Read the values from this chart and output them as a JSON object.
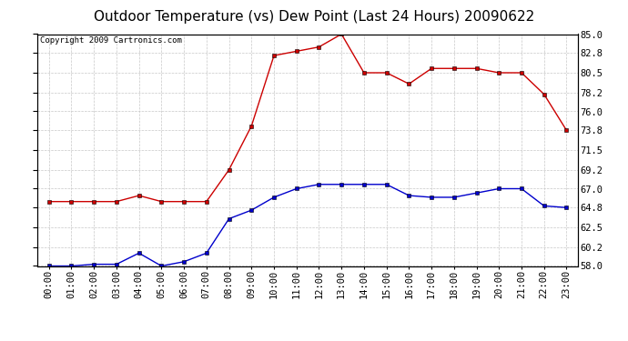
{
  "title": "Outdoor Temperature (vs) Dew Point (Last 24 Hours) 20090622",
  "copyright": "Copyright 2009 Cartronics.com",
  "x_labels": [
    "00:00",
    "01:00",
    "02:00",
    "03:00",
    "04:00",
    "05:00",
    "06:00",
    "07:00",
    "08:00",
    "09:00",
    "10:00",
    "11:00",
    "12:00",
    "13:00",
    "14:00",
    "15:00",
    "16:00",
    "17:00",
    "18:00",
    "19:00",
    "20:00",
    "21:00",
    "22:00",
    "23:00"
  ],
  "temp_red": [
    65.5,
    65.5,
    65.5,
    65.5,
    66.2,
    65.5,
    65.5,
    65.5,
    69.2,
    74.3,
    82.5,
    83.0,
    83.5,
    85.0,
    80.5,
    80.5,
    79.2,
    81.0,
    81.0,
    81.0,
    80.5,
    80.5,
    78.0,
    73.8
  ],
  "dew_blue": [
    58.0,
    58.0,
    58.2,
    58.2,
    59.5,
    58.0,
    58.5,
    59.5,
    63.5,
    64.5,
    66.0,
    67.0,
    67.5,
    67.5,
    67.5,
    67.5,
    66.2,
    66.0,
    66.0,
    66.5,
    67.0,
    67.0,
    65.0,
    64.8
  ],
  "ymin": 58.0,
  "ymax": 85.0,
  "yticks": [
    58.0,
    60.2,
    62.5,
    64.8,
    67.0,
    69.2,
    71.5,
    73.8,
    76.0,
    78.2,
    80.5,
    82.8,
    85.0
  ],
  "bg_color": "#ffffff",
  "plot_bg": "#ffffff",
  "grid_color": "#c8c8c8",
  "red_color": "#cc0000",
  "blue_color": "#0000cc",
  "title_fontsize": 11,
  "tick_fontsize": 7.5,
  "copyright_fontsize": 6.5
}
